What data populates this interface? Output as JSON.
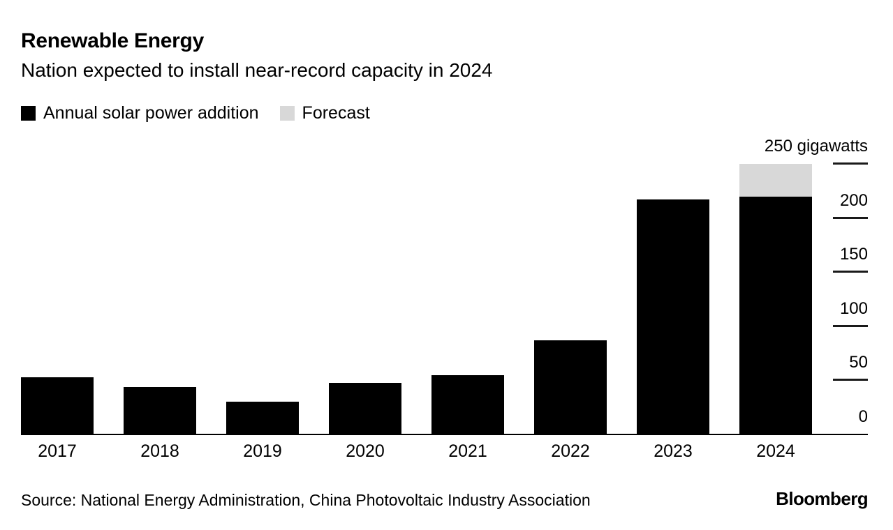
{
  "header": {
    "title": "Renewable Energy",
    "subtitle": "Nation expected to install near-record capacity in 2024"
  },
  "legend": [
    {
      "label": "Annual solar power addition",
      "color": "#000000"
    },
    {
      "label": "Forecast",
      "color": "#d8d8d8"
    }
  ],
  "chart_data": {
    "type": "bar",
    "stacked": true,
    "categories": [
      "2017",
      "2018",
      "2019",
      "2020",
      "2021",
      "2022",
      "2023",
      "2024"
    ],
    "series": [
      {
        "name": "Annual solar power addition",
        "color": "#000000",
        "values": [
          53,
          44,
          30,
          48,
          55,
          87,
          217,
          220
        ]
      },
      {
        "name": "Forecast",
        "color": "#d8d8d8",
        "values": [
          0,
          0,
          0,
          0,
          0,
          0,
          0,
          30
        ]
      }
    ],
    "unit": "gigawatts",
    "ylim": [
      0,
      250
    ],
    "y_ticks": [
      0,
      50,
      100,
      150,
      200,
      250
    ],
    "y_top_label": "250 gigawatts",
    "axis_side": "right",
    "grid": false,
    "legend_position": "top-left"
  },
  "footer": {
    "source": "Source: National Energy Administration, China Photovoltaic Industry Association",
    "brand": "Bloomberg"
  }
}
